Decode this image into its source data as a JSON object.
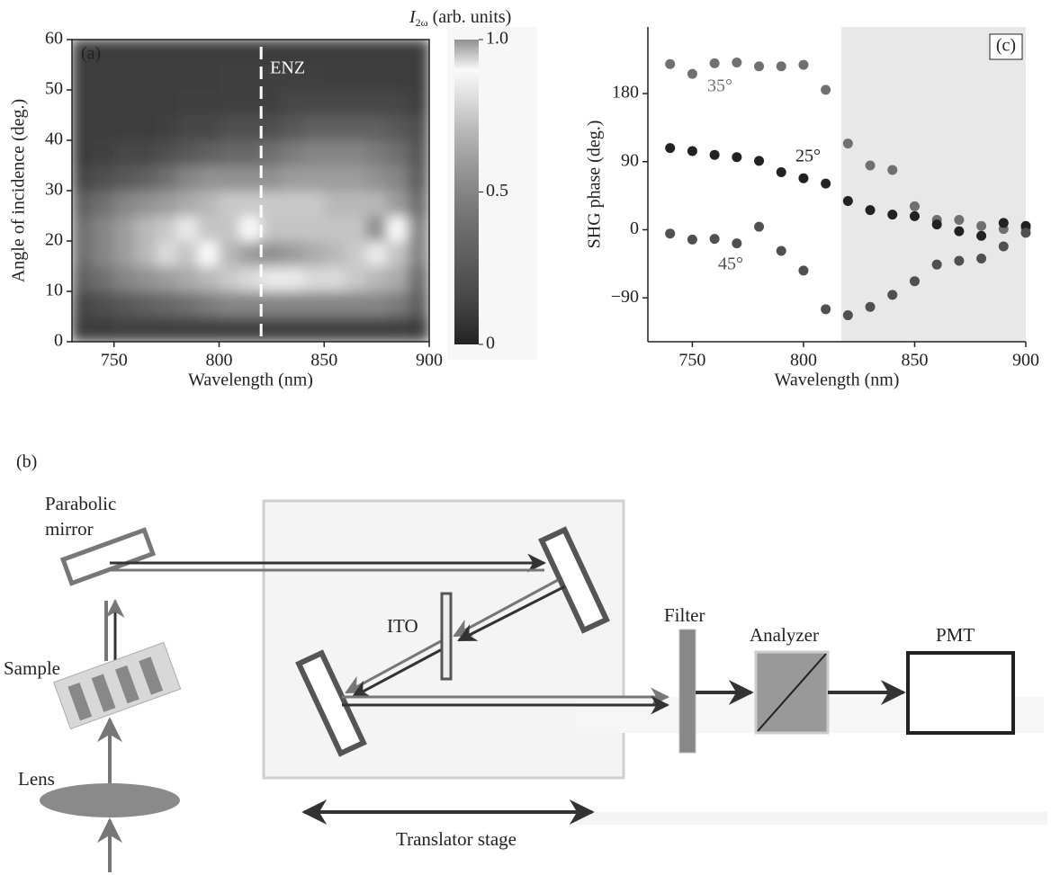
{
  "chart_data": [
    {
      "type": "heatmap",
      "panel_label": "(a)",
      "x": [
        735,
        745,
        755,
        765,
        775,
        785,
        795,
        805,
        815,
        825,
        835,
        845,
        855,
        865,
        875,
        885,
        895
      ],
      "y": [
        2.5,
        7.5,
        12.5,
        17.5,
        22.5,
        27.5,
        32.5,
        37.5,
        42.5,
        47.5,
        52.5,
        57.5
      ],
      "values": [
        [
          0.1,
          0.1,
          0.12,
          0.12,
          0.12,
          0.12,
          0.12,
          0.12,
          0.12,
          0.12,
          0.12,
          0.12,
          0.12,
          0.12,
          0.12,
          0.12,
          0.1
        ],
        [
          0.15,
          0.2,
          0.25,
          0.3,
          0.35,
          0.4,
          0.45,
          0.5,
          0.5,
          0.5,
          0.5,
          0.5,
          0.5,
          0.5,
          0.5,
          0.45,
          0.3
        ],
        [
          0.3,
          0.4,
          0.5,
          0.55,
          0.6,
          0.65,
          0.7,
          0.75,
          0.8,
          0.85,
          0.85,
          0.8,
          0.8,
          0.75,
          0.7,
          0.65,
          0.4
        ],
        [
          0.4,
          0.5,
          0.6,
          0.7,
          0.8,
          0.95,
          0.9,
          0.7,
          0.6,
          0.55,
          0.6,
          0.65,
          0.7,
          0.75,
          0.85,
          0.95,
          0.5
        ],
        [
          0.4,
          0.5,
          0.6,
          0.7,
          0.75,
          0.85,
          0.95,
          0.95,
          0.9,
          0.95,
          0.95,
          0.95,
          0.95,
          0.95,
          1.0,
          0.9,
          0.5
        ],
        [
          0.3,
          0.4,
          0.5,
          0.55,
          0.6,
          0.65,
          0.7,
          0.75,
          0.75,
          0.75,
          0.75,
          0.75,
          0.7,
          0.7,
          0.7,
          0.6,
          0.4
        ],
        [
          0.15,
          0.2,
          0.25,
          0.3,
          0.4,
          0.5,
          0.55,
          0.55,
          0.55,
          0.55,
          0.6,
          0.6,
          0.6,
          0.6,
          0.55,
          0.5,
          0.3
        ],
        [
          0.1,
          0.12,
          0.15,
          0.15,
          0.2,
          0.25,
          0.3,
          0.35,
          0.35,
          0.4,
          0.45,
          0.5,
          0.5,
          0.5,
          0.45,
          0.4,
          0.25
        ],
        [
          0.1,
          0.1,
          0.1,
          0.1,
          0.12,
          0.15,
          0.15,
          0.2,
          0.2,
          0.2,
          0.25,
          0.3,
          0.3,
          0.3,
          0.3,
          0.25,
          0.2
        ],
        [
          0.1,
          0.1,
          0.1,
          0.1,
          0.1,
          0.12,
          0.12,
          0.12,
          0.12,
          0.12,
          0.15,
          0.15,
          0.15,
          0.15,
          0.15,
          0.15,
          0.12
        ],
        [
          0.1,
          0.1,
          0.1,
          0.1,
          0.1,
          0.1,
          0.1,
          0.12,
          0.12,
          0.12,
          0.12,
          0.12,
          0.1,
          0.1,
          0.1,
          0.1,
          0.1
        ],
        [
          0.1,
          0.1,
          0.1,
          0.1,
          0.1,
          0.1,
          0.1,
          0.1,
          0.1,
          0.1,
          0.1,
          0.1,
          0.1,
          0.1,
          0.1,
          0.1,
          0.1
        ]
      ],
      "xlim": [
        730,
        900
      ],
      "ylim": [
        0,
        60
      ],
      "xticks": [
        750,
        800,
        850,
        900
      ],
      "yticks": [
        0,
        10,
        20,
        30,
        40,
        50,
        60
      ],
      "xlabel": "Wavelength (nm)",
      "ylabel": "Angle of incidence (deg.)",
      "zlim": [
        0,
        1
      ],
      "zticks": [
        0,
        0.5,
        {
          "value": 1,
          "label": "1.0"
        }
      ],
      "colorbar_label": {
        "symbol": "I",
        "subscript": "2ω",
        "unit": "(arb. units)"
      },
      "colormap": [
        "#222222",
        "#3c3c3c",
        "#505050",
        "#606060",
        "#707070",
        "#858585",
        "#9c9c9c",
        "#b8b8b8",
        "#dadada",
        "#fafafa",
        "#909090"
      ],
      "enz_x": 820,
      "enz_label": "ENZ"
    },
    {
      "type": "scatter",
      "panel_label": "(c)",
      "x": [
        740,
        750,
        760,
        770,
        780,
        790,
        800,
        810,
        820,
        830,
        840,
        850,
        860,
        870,
        880,
        890,
        900
      ],
      "series": [
        {
          "name": "35°",
          "color": "#707070",
          "values": [
            219,
            206,
            220,
            221,
            216,
            216,
            218,
            185,
            114,
            85,
            79,
            31,
            13,
            13,
            5,
            1,
            2
          ]
        },
        {
          "name": "25°",
          "color": "#222222",
          "values": [
            108,
            104,
            99,
            96,
            91,
            76,
            68,
            61,
            38,
            26,
            20,
            18,
            7,
            -2,
            -8,
            9,
            5
          ]
        },
        {
          "name": "45°",
          "color": "#505050",
          "values": [
            -5,
            -13,
            -12,
            -18,
            4,
            -28,
            -54,
            -105,
            -113,
            -102,
            -86,
            -68,
            -46,
            -41,
            -38,
            -22,
            -4
          ]
        }
      ],
      "xlim": [
        730,
        900
      ],
      "ylim": [
        -148,
        268
      ],
      "xticks": [
        750,
        800,
        850,
        900
      ],
      "yticks": [
        {
          "value": -90,
          "label": "−90"
        },
        0,
        90,
        180
      ],
      "xlabel": "Wavelength (nm)",
      "ylabel": "SHG phase (deg.)",
      "shaded_xrange": [
        817,
        900
      ],
      "shade_color": "#e8e8e8"
    }
  ],
  "diagram": {
    "panel_label": "(b)",
    "parabolic_mirror": [
      "Parabolic",
      "mirror"
    ],
    "sample": "Sample",
    "lens": "Lens",
    "ito": "ITO",
    "filter": "Filter",
    "analyzer": "Analyzer",
    "pmt": "PMT",
    "translator_stage": "Translator stage"
  }
}
